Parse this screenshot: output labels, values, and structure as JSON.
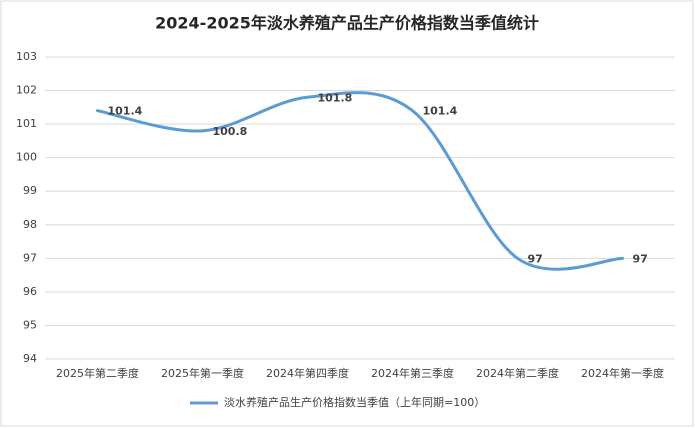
{
  "chart_data": {
    "type": "line",
    "title": "2024-2025年淡水养殖产品生产价格指数当季值统计",
    "categories": [
      "2025年第二季度",
      "2025年第一季度",
      "2024年第四季度",
      "2024年第三季度",
      "2024年第二季度",
      "2024年第一季度"
    ],
    "series": [
      {
        "name": "淡水养殖产品生产价格指数当季值（上年同期=100）",
        "color": "#5b9bd5",
        "values": [
          101.4,
          100.8,
          101.8,
          101.4,
          97,
          97
        ]
      }
    ],
    "ylim": [
      94,
      103
    ],
    "yticks": [
      94,
      95,
      96,
      97,
      98,
      99,
      100,
      101,
      102,
      103
    ],
    "grid": true,
    "smooth": true,
    "legend": "bottom"
  }
}
